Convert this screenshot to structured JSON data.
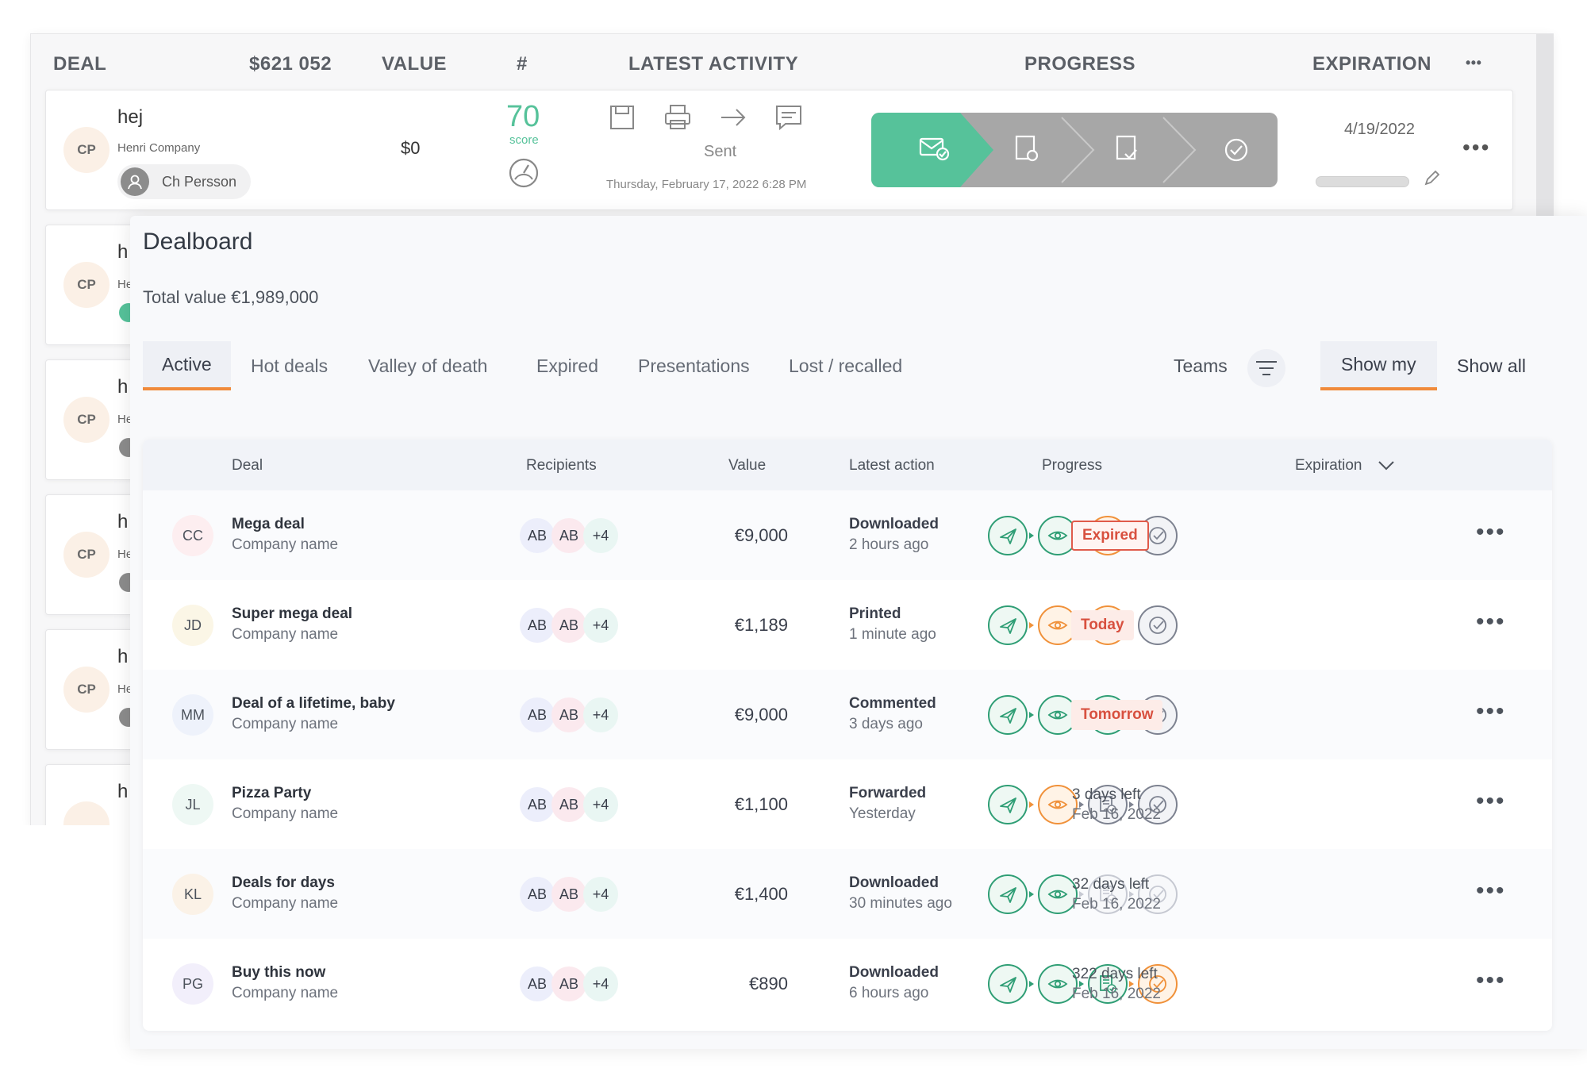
{
  "old_list": {
    "headers": {
      "deal": "DEAL",
      "total": "$621 052",
      "value": "VALUE",
      "count": "#",
      "latest_activity": "LATEST ACTIVITY",
      "progress": "PROGRESS",
      "expiration": "EXPIRATION",
      "more": "•••"
    },
    "first_row": {
      "avatar": "CP",
      "name": "hej",
      "company": "Henri Company",
      "owner": "Ch Persson",
      "value": "$0",
      "score": "70",
      "score_label": "score",
      "activity_status": "Sent",
      "activity_date": "Thursday, February 17, 2022 6:28 PM",
      "expiration": "4/19/2022",
      "more": "•••"
    },
    "partial_rows": [
      {
        "avatar": "CP",
        "name": "h",
        "company": "He"
      },
      {
        "avatar": "CP",
        "name": "h",
        "company": "He"
      },
      {
        "avatar": "CP",
        "name": "h",
        "company": "He"
      },
      {
        "avatar": "CP",
        "name": "h",
        "company": "He"
      },
      {
        "avatar": "",
        "name": "h",
        "company": ""
      }
    ]
  },
  "dealboard": {
    "title": "Dealboard",
    "total": "Total value €1,989,000",
    "tabs": [
      "Active",
      "Hot deals",
      "Valley of death",
      "Expired",
      "Presentations",
      "Lost / recalled"
    ],
    "teams_label": "Teams",
    "show_my": "Show my",
    "show_all": "Show all",
    "columns": {
      "deal": "Deal",
      "recipients": "Recipients",
      "value": "Value",
      "latest_action": "Latest action",
      "progress": "Progress",
      "expiration": "Expiration"
    },
    "rows": [
      {
        "initials": "CC",
        "name": "Mega deal",
        "company": "Company name",
        "r1": "AB",
        "r2": "AB",
        "more": "+4",
        "value": "€9,000",
        "action": "Downloaded",
        "when": "2 hours ago",
        "exp_badge": "Expired",
        "exp1": "",
        "exp2": "",
        "row_more": "•••"
      },
      {
        "initials": "JD",
        "name": "Super mega deal",
        "company": "Company name",
        "r1": "AB",
        "r2": "AB",
        "more": "+4",
        "value": "€1,189",
        "action": "Printed",
        "when": "1 minute ago",
        "exp_badge": "Today",
        "exp1": "",
        "exp2": "",
        "row_more": "•••"
      },
      {
        "initials": "MM",
        "name": "Deal of a lifetime, baby",
        "company": "Company name",
        "r1": "AB",
        "r2": "AB",
        "more": "+4",
        "value": "€9,000",
        "action": "Commented",
        "when": "3 days ago",
        "exp_badge": "Tomorrow",
        "exp1": "",
        "exp2": "",
        "row_more": "•••"
      },
      {
        "initials": "JL",
        "name": "Pizza Party",
        "company": "Company name",
        "r1": "AB",
        "r2": "AB",
        "more": "+4",
        "value": "€1,100",
        "action": "Forwarded",
        "when": "Yesterday",
        "exp_badge": "",
        "exp1": "3 days left",
        "exp2": "Feb 16, 2022",
        "row_more": "•••"
      },
      {
        "initials": "KL",
        "name": "Deals for days",
        "company": "Company name",
        "r1": "AB",
        "r2": "AB",
        "more": "+4",
        "value": "€1,400",
        "action": "Downloaded",
        "when": "30 minutes ago",
        "exp_badge": "",
        "exp1": "32 days left",
        "exp2": "Feb 16, 2022",
        "row_more": "•••"
      },
      {
        "initials": "PG",
        "name": "Buy this now",
        "company": "Company name",
        "r1": "AB",
        "r2": "AB",
        "more": "+4",
        "value": "€890",
        "action": "Downloaded",
        "when": "6 hours ago",
        "exp_badge": "",
        "exp1": "322 days left",
        "exp2": "Feb 16, 2022",
        "row_more": "•••"
      }
    ],
    "progress_states": [
      [
        "green",
        "green",
        "orange",
        "gray"
      ],
      [
        "green",
        "orange",
        "orange",
        "gray"
      ],
      [
        "green",
        "green",
        "green",
        "gray"
      ],
      [
        "green",
        "orange",
        "gray",
        "gray"
      ],
      [
        "green",
        "green",
        "faded",
        "faded"
      ],
      [
        "green",
        "green",
        "green",
        "orange"
      ]
    ],
    "progress_icons": [
      "send-icon",
      "eye-icon",
      "document-check-icon",
      "check-circle-icon"
    ]
  },
  "colors": {
    "green": "#2f9e75",
    "orange": "#f0913a",
    "gray": "#7d8290",
    "accent": "#f08a3a",
    "expired": "#d8503f"
  }
}
